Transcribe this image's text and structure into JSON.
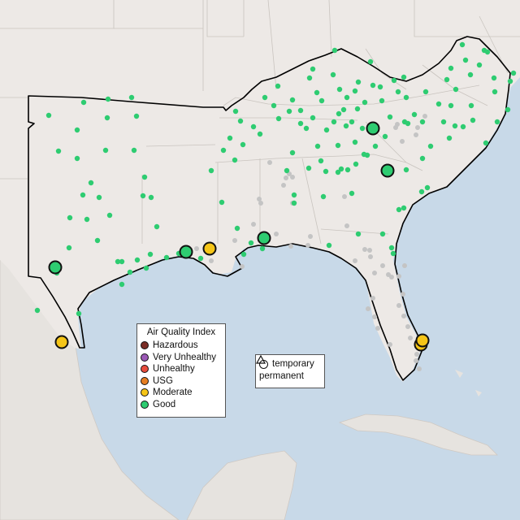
{
  "colors": {
    "water": "#c8d9e8",
    "land": "#ede9e6",
    "foreign_land": "#e6e3df",
    "good": "#2ecc71",
    "moderate": "#f5c518",
    "usg": "#e67e22",
    "unhealthy": "#e74c3c",
    "very_unhealthy": "#9b59b6",
    "hazardous": "#7b2d26",
    "inactive": "#c4c4c4"
  },
  "legend": {
    "aqi_title": "Air Quality Index",
    "aqi_items": [
      {
        "label": "Hazardous",
        "color": "#7b2d26"
      },
      {
        "label": "Very Unhealthy",
        "color": "#9b59b6"
      },
      {
        "label": "Unhealthy",
        "color": "#e74c3c"
      },
      {
        "label": "USG",
        "color": "#e67e22"
      },
      {
        "label": "Moderate",
        "color": "#f5c518"
      },
      {
        "label": "Good",
        "color": "#2ecc71"
      }
    ],
    "type_items": [
      {
        "label": "temporary",
        "shape": "circle"
      },
      {
        "label": "permanent",
        "shape": "triangle"
      }
    ]
  },
  "monitors": {
    "large": [
      {
        "id": "west-texas",
        "aqi": "Good"
      },
      {
        "id": "south-texas",
        "aqi": "Moderate"
      },
      {
        "id": "louisiana-west",
        "aqi": "Good"
      },
      {
        "id": "louisiana-east",
        "aqi": "Moderate"
      },
      {
        "id": "mississippi-coast",
        "aqi": "Good"
      },
      {
        "id": "east-tennessee",
        "aqi": "Good"
      },
      {
        "id": "south-carolina",
        "aqi": "Good"
      },
      {
        "id": "south-florida-1",
        "aqi": "Moderate"
      },
      {
        "id": "south-florida-2",
        "aqi": "Moderate"
      }
    ]
  }
}
